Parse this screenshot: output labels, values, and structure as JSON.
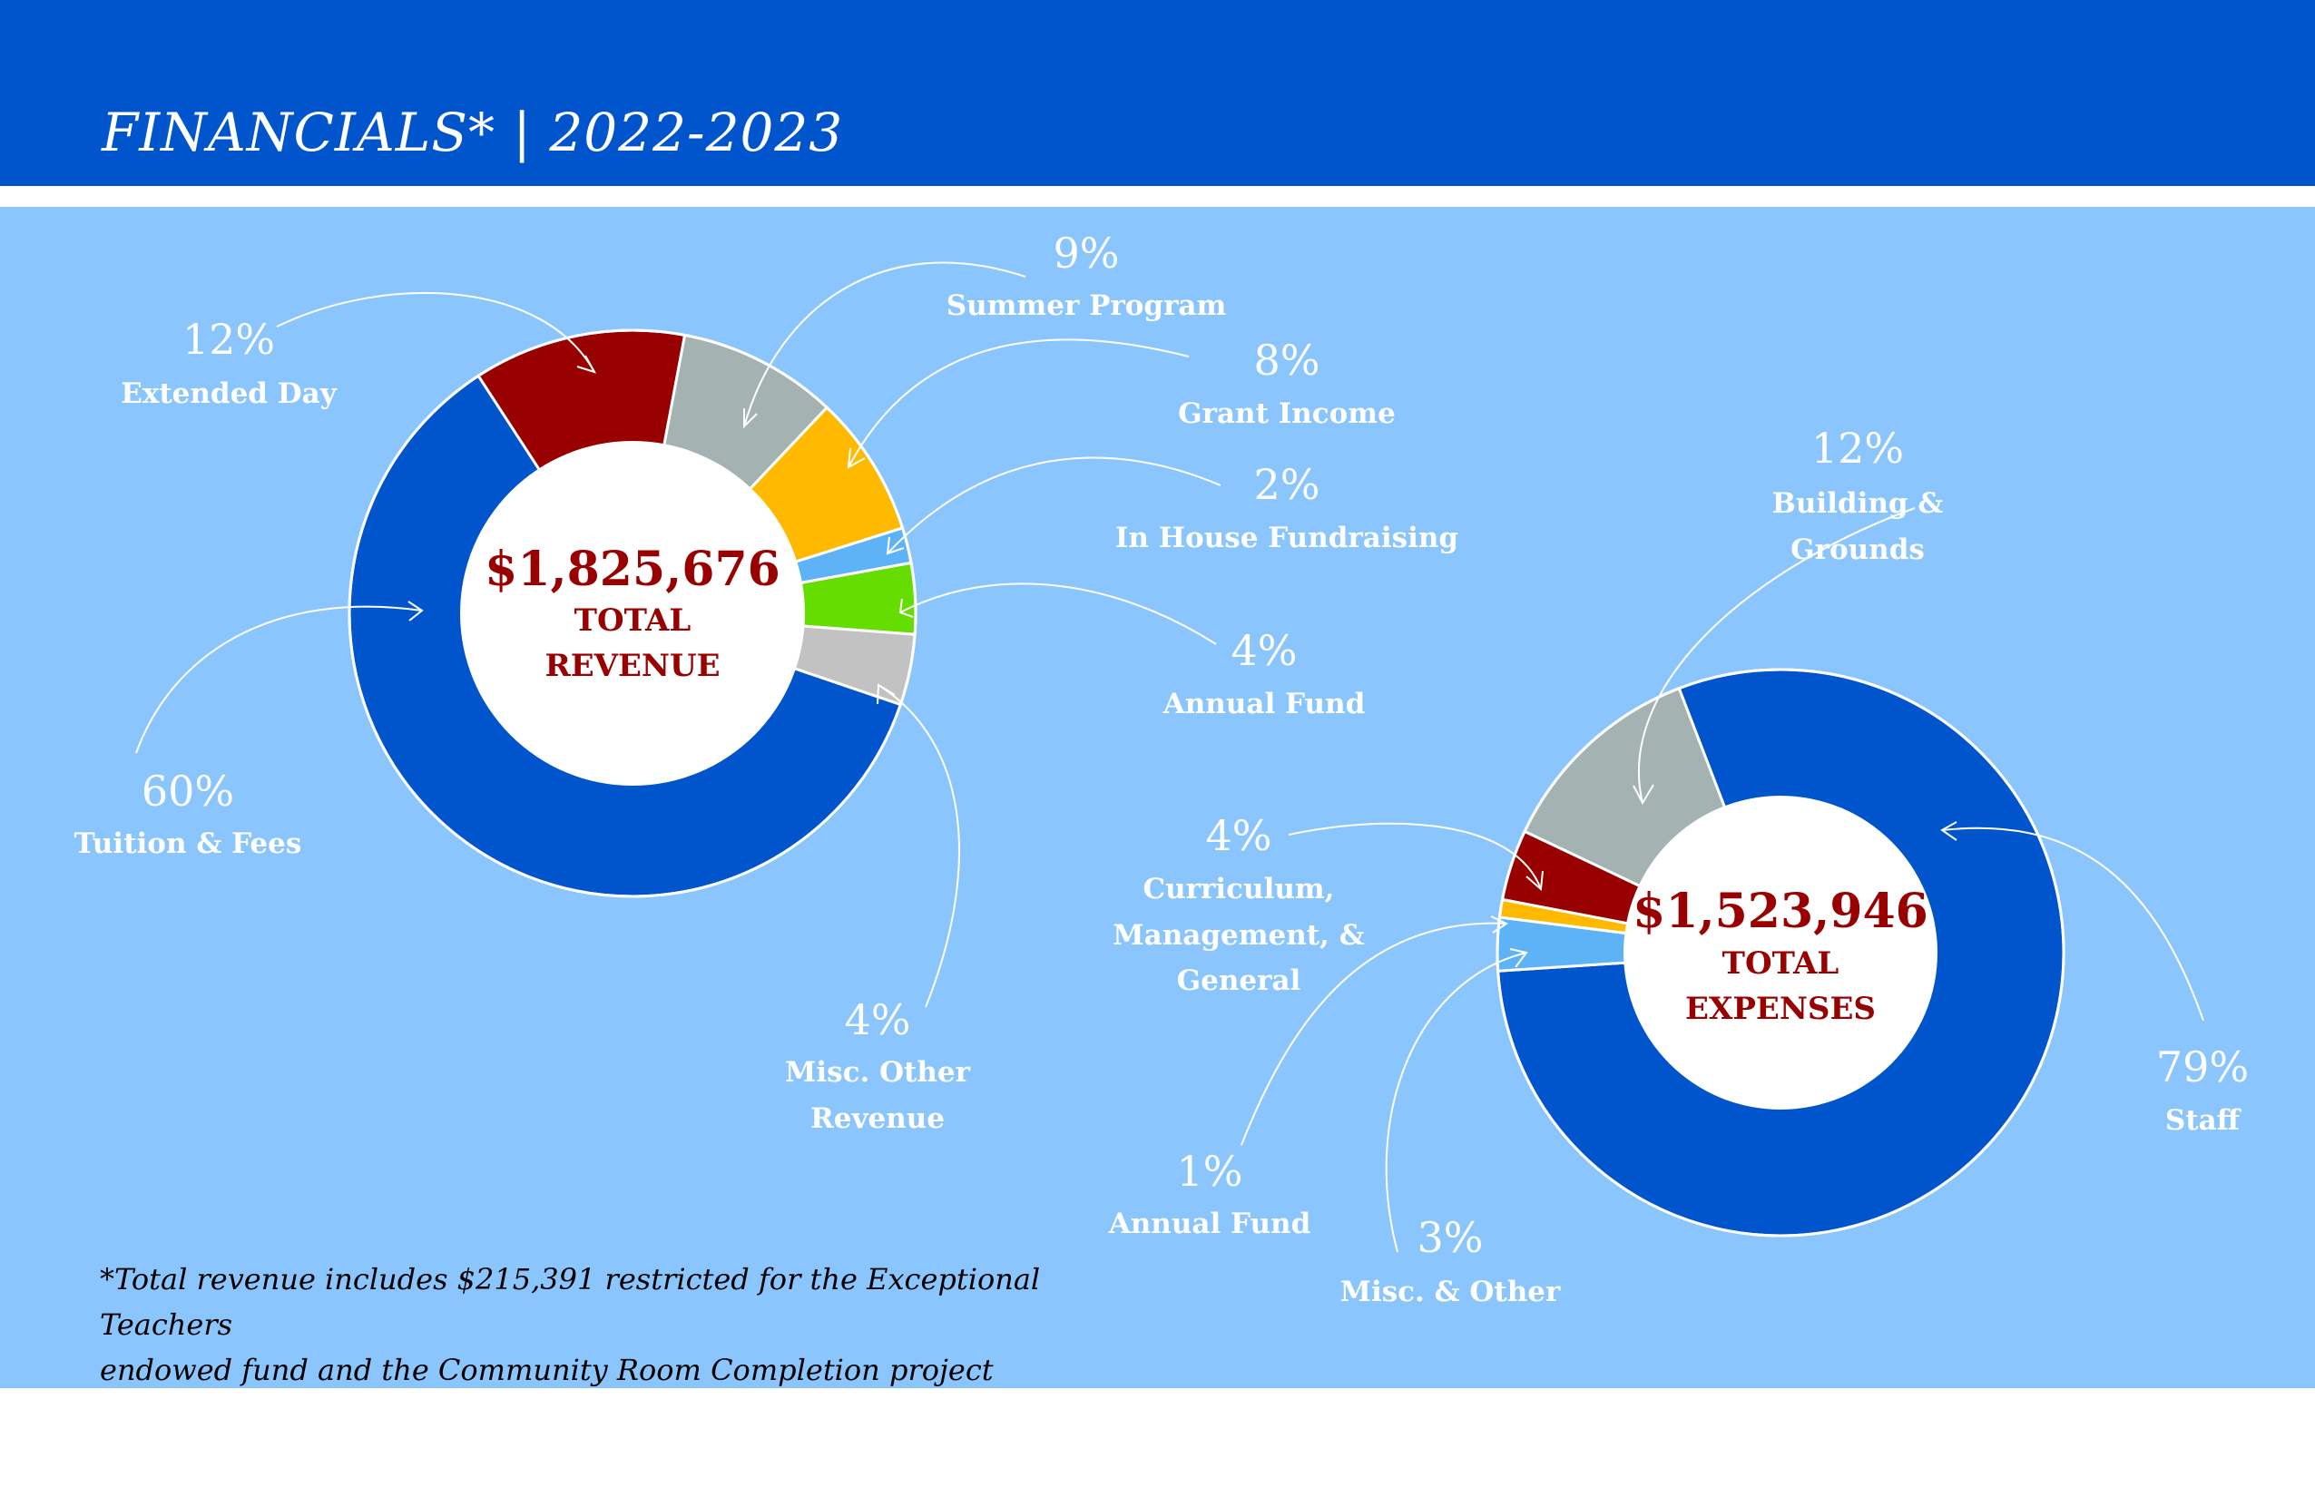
{
  "header": {
    "title": "FINANCIALS*  |  2022-2023"
  },
  "colors": {
    "header_bg": "#0055cc",
    "panel_bg": "#8ac6fd",
    "accent_text": "#990000"
  },
  "chart_data": [
    {
      "type": "pie",
      "center": {
        "amount": "$1,825,676",
        "line1": "TOTAL",
        "line2": "REVENUE"
      },
      "slices": [
        {
          "label": "Extended Day",
          "pct_label": "12%",
          "value": 12,
          "color": "#990000"
        },
        {
          "label": "Summer Program",
          "pct_label": "9%",
          "value": 9,
          "color": "#a4b2b1"
        },
        {
          "label": "Grant Income",
          "pct_label": "8%",
          "value": 8,
          "color": "#ffba00"
        },
        {
          "label": "In House Fundraising",
          "pct_label": "2%",
          "value": 2,
          "color": "#5eb3f7"
        },
        {
          "label": "Annual Fund",
          "pct_label": "4%",
          "value": 4,
          "color": "#66dd00"
        },
        {
          "label": "Misc. Other Revenue",
          "pct_label": "4%",
          "value": 4,
          "color": "#c2c2c2"
        },
        {
          "label": "Tuition & Fees",
          "pct_label": "60%",
          "value": 60,
          "color": "#0055cc"
        }
      ]
    },
    {
      "type": "pie",
      "center": {
        "amount": "$1,523,946",
        "line1": "TOTAL",
        "line2": "EXPENSES"
      },
      "slices": [
        {
          "label": "Staff",
          "pct_label": "79%",
          "value": 79,
          "color": "#0055cc"
        },
        {
          "label": "Misc. & Other",
          "pct_label": "3%",
          "value": 3,
          "color": "#5eb3f7"
        },
        {
          "label": "Annual Fund",
          "pct_label": "1%",
          "value": 1,
          "color": "#ffba00"
        },
        {
          "label": "Curriculum, Management, & General",
          "pct_label": "4%",
          "value": 4,
          "color": "#990000"
        },
        {
          "label": "Building & Grounds",
          "pct_label": "12%",
          "value": 12,
          "color": "#a4b2b1"
        }
      ]
    }
  ],
  "footnote": {
    "line1": "*Total revenue includes $215,391 restricted for the Exceptional Teachers",
    "line2": "endowed fund and the Community Room Completion project"
  }
}
